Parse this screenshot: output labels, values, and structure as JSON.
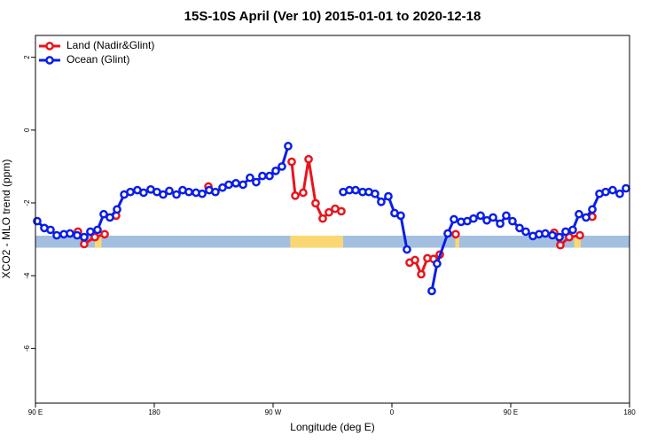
{
  "chart_data": {
    "type": "line",
    "title": "15S-10S April (Ver 10)   2015-01-01 to 2020-12-18",
    "xlabel": "Longitude (deg E)",
    "ylabel": "XCO2 - MLO trend (ppm)",
    "xlim": [
      90,
      540
    ],
    "ylim": [
      -7.5,
      2.6
    ],
    "xticks": [
      {
        "value": 90,
        "label": "90 E"
      },
      {
        "value": 180,
        "label": "180"
      },
      {
        "value": 270,
        "label": "90 W"
      },
      {
        "value": 360,
        "label": "0"
      },
      {
        "value": 450,
        "label": "90 E"
      },
      {
        "value": 540,
        "label": "180"
      }
    ],
    "yticks": [
      -6,
      -4,
      -2,
      0,
      2
    ],
    "legend": "top-left",
    "surface_band": {
      "ylim": [
        -3.23,
        -2.9
      ],
      "ocean_color": "#a3bfe0",
      "land_color": "#f9d874",
      "land": [
        [
          135,
          140
        ],
        [
          283,
          323
        ],
        [
          408,
          411
        ],
        [
          498,
          503
        ]
      ]
    },
    "series": [
      {
        "name": "Land (Nadir&Glint)",
        "color": "#e8141c",
        "x": [
          122.2,
          126.9,
          135.0,
          142.4,
          146.8,
          151.1,
          186.0,
          221.0,
          252.5,
          284.1,
          286.8,
          292.8,
          296.9,
          302.2,
          307.6,
          312.3,
          317.0,
          321.7,
          347.5,
          373.4,
          377.5,
          382.2,
          386.9,
          391.6,
          396.3,
          402.3,
          408.3,
          445.6,
          482.9,
          487.6,
          494.3,
          502.4,
          507.1,
          511.8
        ],
        "values": [
          -2.79,
          -3.13,
          -2.94,
          -2.86,
          null,
          -2.35,
          null,
          -1.55,
          null,
          -0.87,
          -1.8,
          -1.72,
          -0.8,
          -2.01,
          -2.43,
          -2.26,
          -2.16,
          -2.23,
          null,
          -3.64,
          -3.57,
          -3.96,
          -3.52,
          -3.54,
          -3.42,
          null,
          -2.86,
          null,
          -2.82,
          -3.16,
          -2.94,
          -2.89,
          null,
          -2.38
        ]
      },
      {
        "name": "Ocean (Glint)",
        "color": "#0a1ee6",
        "x": [
          91.3,
          96.7,
          101.4,
          106.1,
          111.5,
          116.2,
          121.6,
          126.9,
          131.6,
          137.0,
          141.7,
          146.4,
          151.8,
          157.2,
          161.9,
          167.2,
          171.9,
          177.3,
          182.0,
          186.7,
          191.4,
          196.8,
          201.5,
          206.2,
          211.6,
          216.3,
          221.6,
          226.3,
          231.7,
          236.4,
          241.8,
          247.2,
          252.5,
          257.2,
          261.9,
          267.3,
          272.0,
          276.7,
          281.4,
          302.0,
          323.1,
          327.8,
          332.5,
          337.8,
          342.5,
          347.2,
          351.9,
          357.3,
          362.0,
          366.7,
          371.4,
          380.0,
          390.2,
          394.2,
          402.3,
          407.0,
          412.4,
          417.1,
          421.8,
          427.2,
          431.9,
          436.6,
          442.0,
          446.6,
          451.3,
          456.7,
          461.4,
          466.8,
          471.5,
          476.2,
          481.6,
          486.9,
          491.6,
          497.0,
          501.7,
          507.1,
          511.8,
          517.2,
          521.9,
          527.2,
          532.6,
          537.3
        ],
        "values": [
          -2.5,
          -2.69,
          -2.74,
          -2.89,
          -2.86,
          -2.84,
          -2.89,
          -2.94,
          -2.79,
          -2.74,
          -2.31,
          -2.4,
          -2.18,
          -1.77,
          -1.7,
          -1.65,
          -1.72,
          -1.63,
          -1.7,
          -1.77,
          -1.67,
          -1.77,
          -1.65,
          -1.7,
          -1.72,
          -1.75,
          -1.65,
          -1.7,
          -1.58,
          -1.5,
          -1.46,
          -1.5,
          -1.31,
          -1.43,
          -1.26,
          -1.26,
          -1.12,
          -1.0,
          -0.44,
          null,
          -1.7,
          -1.65,
          -1.65,
          -1.7,
          -1.7,
          -1.75,
          -1.97,
          -1.82,
          -2.28,
          -2.35,
          -3.28,
          null,
          -4.42,
          -3.67,
          -2.84,
          -2.45,
          -2.52,
          -2.5,
          -2.43,
          -2.35,
          -2.48,
          -2.4,
          -2.57,
          -2.35,
          -2.5,
          -2.69,
          -2.79,
          -2.91,
          -2.86,
          -2.84,
          -2.89,
          -2.94,
          -2.79,
          -2.74,
          -2.31,
          -2.4,
          -2.18,
          -1.75,
          -1.7,
          -1.65,
          -1.75,
          -1.6
        ]
      }
    ]
  }
}
